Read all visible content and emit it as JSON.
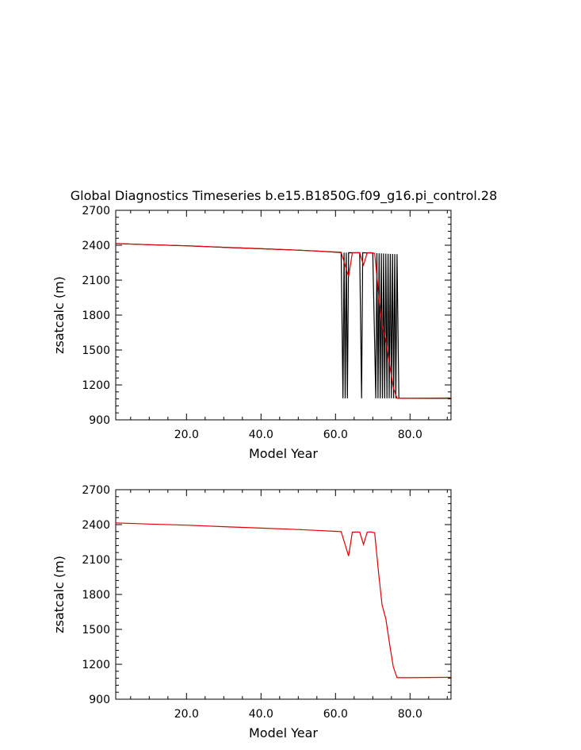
{
  "figure_title": "Global Diagnostics Timeseries b.e15.B1850G.f09_g16.pi_control.28",
  "colors": {
    "annual": "#e00000",
    "monthly": "#000000"
  },
  "chart_data": [
    {
      "type": "line",
      "title": "",
      "xlabel": "Model Year",
      "ylabel": "zsatcalc (m)",
      "xlim": [
        1,
        91
      ],
      "ylim": [
        900,
        2700
      ],
      "xticks": [
        20,
        40,
        60,
        80
      ],
      "xtick_labels": [
        "20.0",
        "40.0",
        "60.0",
        "80.0"
      ],
      "yticks": [
        900,
        1200,
        1500,
        1800,
        2100,
        2400,
        2700
      ],
      "ytick_labels": [
        "900",
        "1200",
        "1500",
        "1800",
        "2100",
        "2400",
        "2700"
      ],
      "grid": false,
      "series": [
        {
          "key": "monthly",
          "color": "#000000",
          "x": [
            1,
            10,
            20,
            30,
            40,
            50,
            55,
            60,
            61.5,
            62.0,
            62.3,
            62.6,
            62.9,
            63.2,
            63.5,
            65.0,
            66.5,
            67.0,
            67.3,
            67.6,
            68.5,
            70.0,
            70.8,
            71.1,
            71.4,
            71.7,
            72.0,
            72.3,
            72.6,
            72.9,
            73.2,
            73.5,
            73.8,
            74.1,
            74.4,
            74.7,
            75.0,
            75.3,
            75.6,
            75.9,
            76.2,
            76.5,
            77,
            80,
            85,
            91
          ],
          "y": [
            2415,
            2405,
            2395,
            2382,
            2370,
            2358,
            2350,
            2340,
            2337,
            1085,
            2336,
            1085,
            2336,
            1085,
            2336,
            2335,
            2336,
            1085,
            2335,
            2335,
            2334,
            2333,
            1085,
            2332,
            1085,
            2331,
            1085,
            2330,
            1085,
            2329,
            1085,
            2328,
            1085,
            2327,
            1085,
            2326,
            1085,
            2325,
            1085,
            2324,
            1085,
            2323,
            1085,
            1085,
            1085,
            1085
          ]
        },
        {
          "key": "annual",
          "color": "#e00000",
          "x": [
            1,
            10,
            20,
            30,
            40,
            50,
            55,
            60,
            61.5,
            63.5,
            64.5,
            65.5,
            66.5,
            67.5,
            68.5,
            69.5,
            70.5,
            71.5,
            72.5,
            73.5,
            74.5,
            75.5,
            76.5,
            80,
            85,
            91
          ],
          "y": [
            2415,
            2405,
            2395,
            2382,
            2370,
            2358,
            2350,
            2342,
            2340,
            2130,
            2335,
            2336,
            2336,
            2230,
            2336,
            2337,
            2330,
            2000,
            1710,
            1590,
            1380,
            1180,
            1085,
            1085,
            1087,
            1088
          ]
        }
      ]
    },
    {
      "type": "line",
      "title": "",
      "xlabel": "Model Year",
      "ylabel": "zsatcalc (m)",
      "xlim": [
        1,
        91
      ],
      "ylim": [
        900,
        2700
      ],
      "xticks": [
        20,
        40,
        60,
        80
      ],
      "xtick_labels": [
        "20.0",
        "40.0",
        "60.0",
        "80.0"
      ],
      "yticks": [
        900,
        1200,
        1500,
        1800,
        2100,
        2400,
        2700
      ],
      "ytick_labels": [
        "900",
        "1200",
        "1500",
        "1800",
        "2100",
        "2400",
        "2700"
      ],
      "grid": false,
      "series": [
        {
          "key": "annual",
          "color": "#e00000",
          "x": [
            1,
            10,
            20,
            30,
            40,
            50,
            55,
            60,
            61.5,
            63.5,
            64.5,
            65.5,
            66.5,
            67.5,
            68.5,
            69.5,
            70.5,
            71.5,
            72.5,
            73.5,
            74.5,
            75.5,
            76.5,
            80,
            85,
            91
          ],
          "y": [
            2415,
            2405,
            2395,
            2382,
            2370,
            2358,
            2350,
            2342,
            2340,
            2130,
            2335,
            2336,
            2336,
            2230,
            2336,
            2337,
            2330,
            2000,
            1710,
            1590,
            1380,
            1180,
            1085,
            1085,
            1087,
            1088
          ]
        }
      ]
    }
  ]
}
